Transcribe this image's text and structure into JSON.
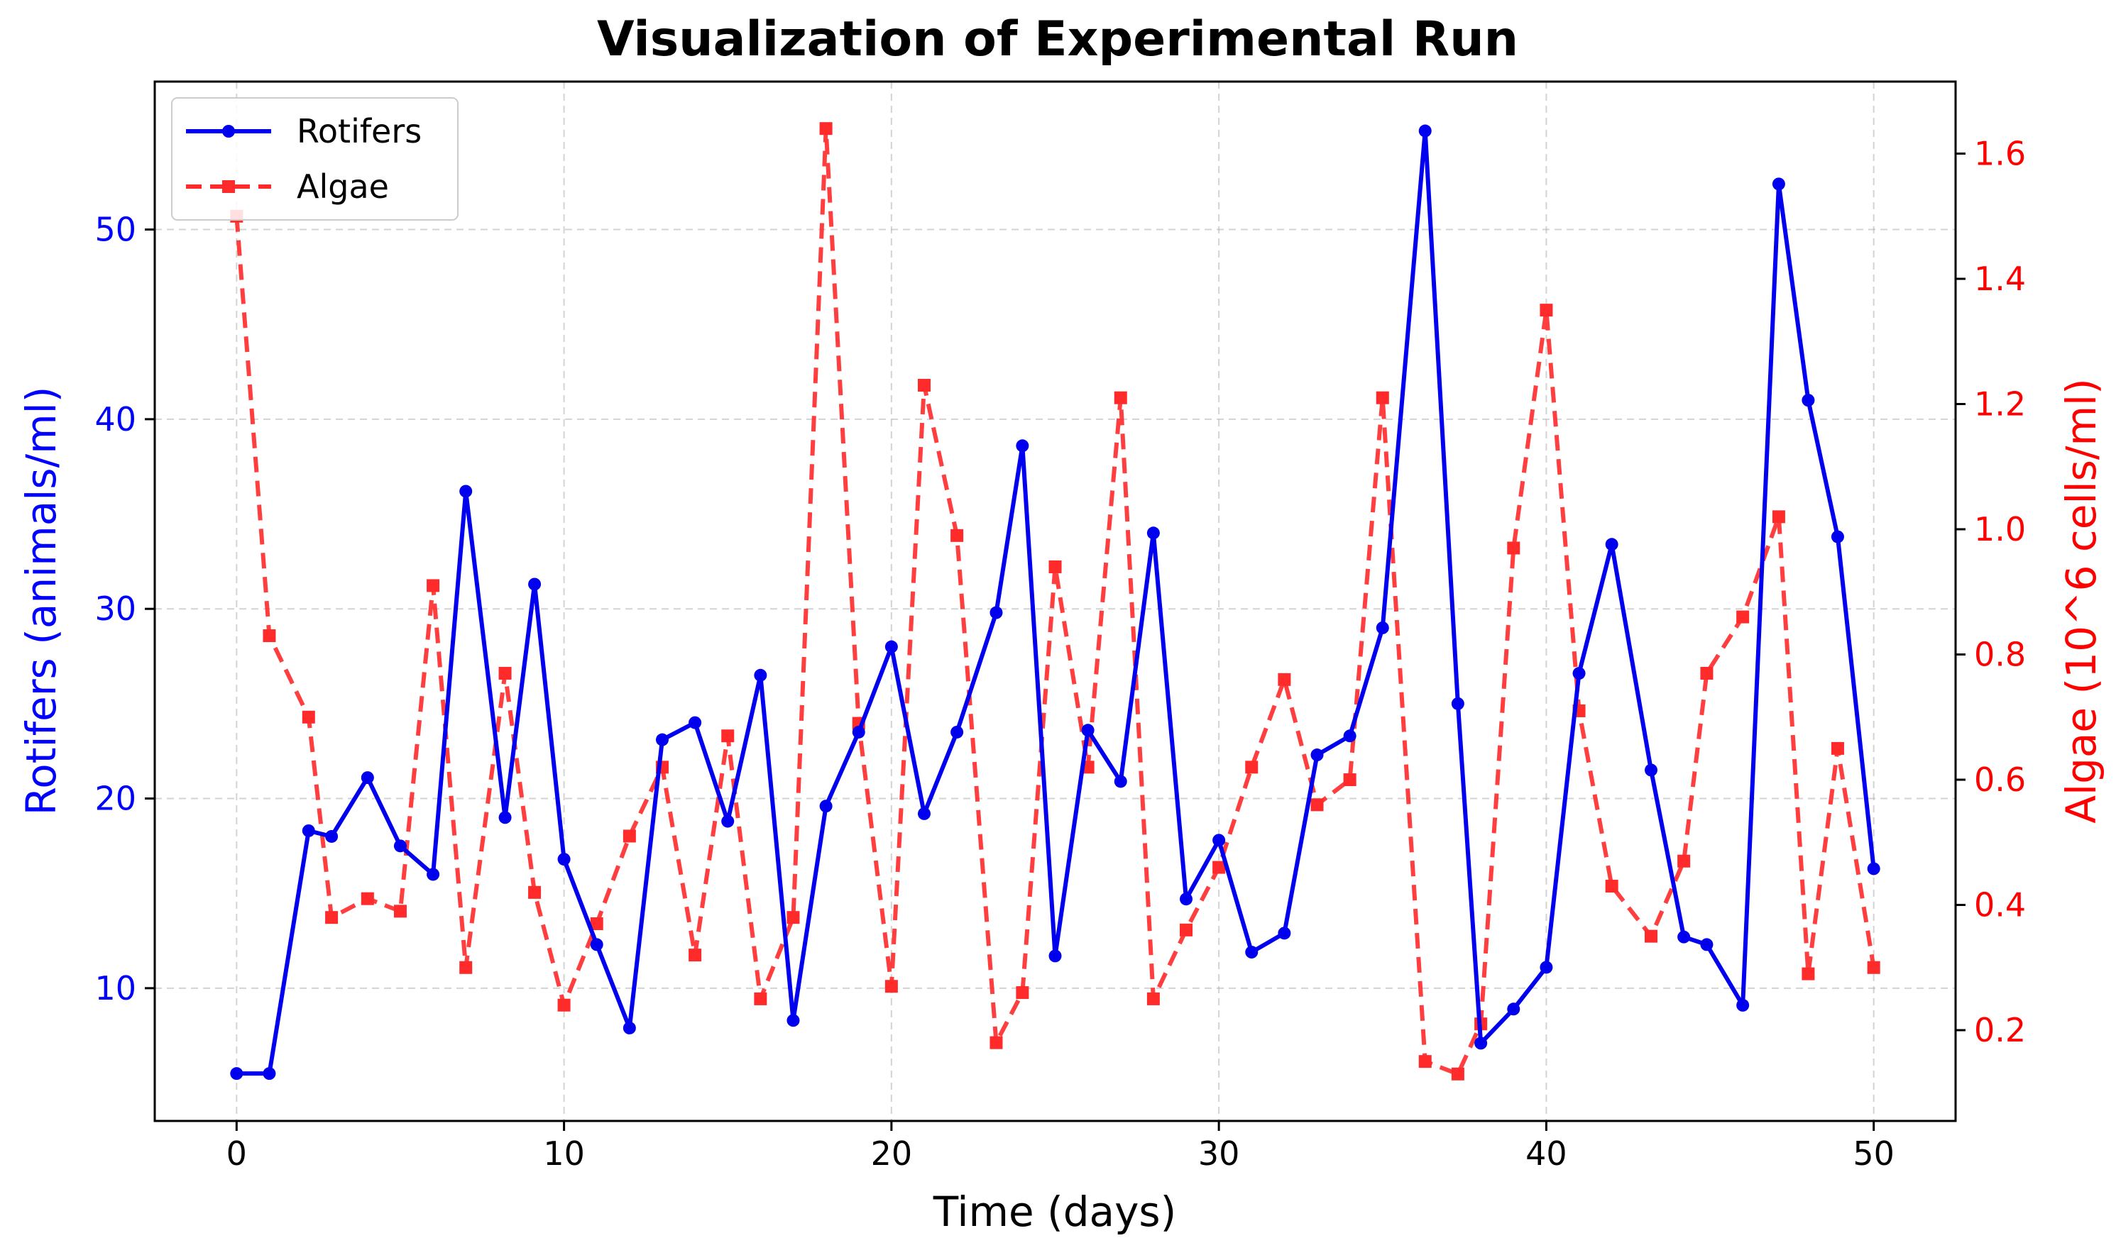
{
  "chart_data": {
    "type": "line",
    "title": "Visualization of Experimental Run",
    "xlabel": "Time (days)",
    "ylabel_left": "Rotifers (animals/ml)",
    "ylabel_right": "Algae (10^6 cells/ml)",
    "xlim": [
      -2.5,
      52.5
    ],
    "ylim_left": [
      3.0,
      57.8
    ],
    "ylim_right": [
      0.055,
      1.715
    ],
    "xticks": [
      0,
      10,
      20,
      30,
      40,
      50
    ],
    "yticks_left": [
      10,
      20,
      30,
      40,
      50
    ],
    "yticks_right": [
      0.2,
      0.4,
      0.6,
      0.8,
      1.0,
      1.2,
      1.4,
      1.6
    ],
    "grid": true,
    "legend_position": "top-left",
    "colors": {
      "rotifers": "#0000ee",
      "algae": "#ff2a2a",
      "left_axis": "#0000ff",
      "right_axis": "#ff0000"
    },
    "series": [
      {
        "name": "Rotifers",
        "axis": "left",
        "style": "solid-circle",
        "x": [
          0,
          1,
          2.2,
          2.9,
          4,
          5,
          6,
          7,
          8.2,
          9.1,
          10,
          11,
          12,
          13,
          14,
          15,
          16,
          17,
          18,
          19,
          20,
          21,
          22,
          23.2,
          24,
          25,
          26,
          27,
          28,
          29,
          30,
          31,
          32,
          33,
          34,
          35,
          36.3,
          37.3,
          38,
          39,
          40,
          41,
          42,
          43.2,
          44.2,
          44.9,
          46,
          47.1,
          48,
          48.9,
          50
        ],
        "y": [
          5.5,
          5.5,
          18.3,
          18.0,
          21.1,
          17.5,
          16.0,
          36.2,
          19.0,
          31.3,
          16.8,
          12.3,
          7.9,
          23.1,
          24.0,
          18.8,
          26.5,
          8.3,
          19.6,
          23.5,
          28.0,
          19.2,
          23.5,
          29.8,
          38.6,
          11.7,
          23.6,
          20.9,
          34.0,
          14.7,
          17.8,
          11.9,
          12.9,
          22.3,
          23.3,
          29.0,
          55.2,
          25.0,
          7.1,
          8.9,
          11.1,
          26.6,
          33.4,
          21.5,
          12.7,
          12.3,
          9.1,
          52.4,
          41.0,
          33.8,
          16.3
        ]
      },
      {
        "name": "Algae",
        "axis": "right",
        "style": "dashed-square",
        "x": [
          0,
          1,
          2.2,
          2.9,
          4,
          5,
          6,
          7,
          8.2,
          9.1,
          10,
          11,
          12,
          13,
          14,
          15,
          16,
          17,
          18,
          19,
          20,
          21,
          22,
          23.2,
          24,
          25,
          26,
          27,
          28,
          29,
          30,
          31,
          32,
          33,
          34,
          35,
          36.3,
          37.3,
          38,
          39,
          40,
          41,
          42,
          43.2,
          44.2,
          44.9,
          46,
          47.1,
          48,
          48.9,
          50
        ],
        "y": [
          1.5,
          0.83,
          0.7,
          0.38,
          0.41,
          0.39,
          0.91,
          0.3,
          0.77,
          0.42,
          0.24,
          0.37,
          0.51,
          0.62,
          0.32,
          0.67,
          0.25,
          0.38,
          1.64,
          0.69,
          0.27,
          1.23,
          0.99,
          0.18,
          0.26,
          0.94,
          0.62,
          1.21,
          0.25,
          0.36,
          0.46,
          0.62,
          0.76,
          0.56,
          0.6,
          1.21,
          0.15,
          0.13,
          0.21,
          0.97,
          1.35,
          0.71,
          0.43,
          0.35,
          0.47,
          0.77,
          0.86,
          1.02,
          0.29,
          0.65,
          0.3
        ]
      }
    ]
  }
}
